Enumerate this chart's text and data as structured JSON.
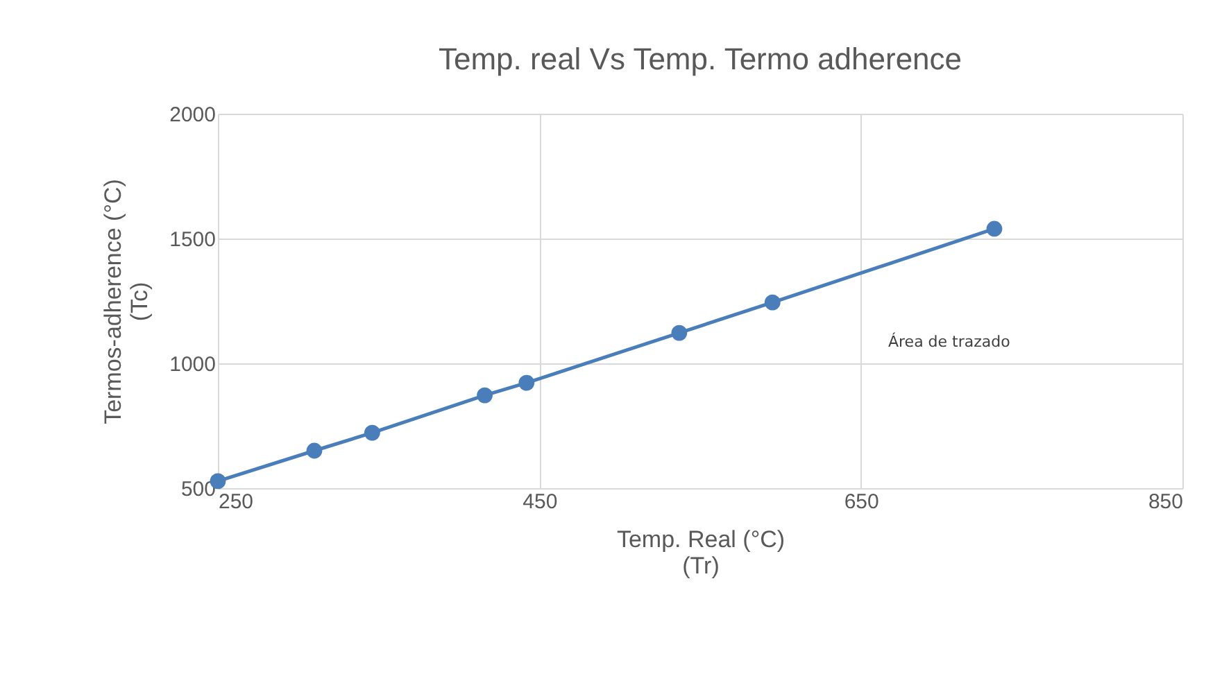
{
  "chart_data": {
    "type": "line",
    "title": "Temp. real Vs Temp. Termo adherence",
    "xlabel": "Temp. Real (°C)\n(Tr)",
    "ylabel": "Termos-adherence (°C)\n(Tc)",
    "x": [
      250,
      310,
      346,
      416,
      442,
      537,
      595,
      733
    ],
    "series": [
      {
        "color": "#4a7ebb",
        "values": [
          528,
          650,
          722,
          872,
          922,
          1122,
          1244,
          1539
        ]
      }
    ],
    "xlim": [
      250,
      850
    ],
    "xticks": [
      250,
      450,
      650,
      850
    ],
    "ylim": [
      500,
      2000
    ],
    "yticks": [
      500,
      1000,
      1500,
      2000
    ],
    "grid": true,
    "marker": "circle",
    "line_style": "solid",
    "annotations": [
      "Área de trazado"
    ]
  }
}
